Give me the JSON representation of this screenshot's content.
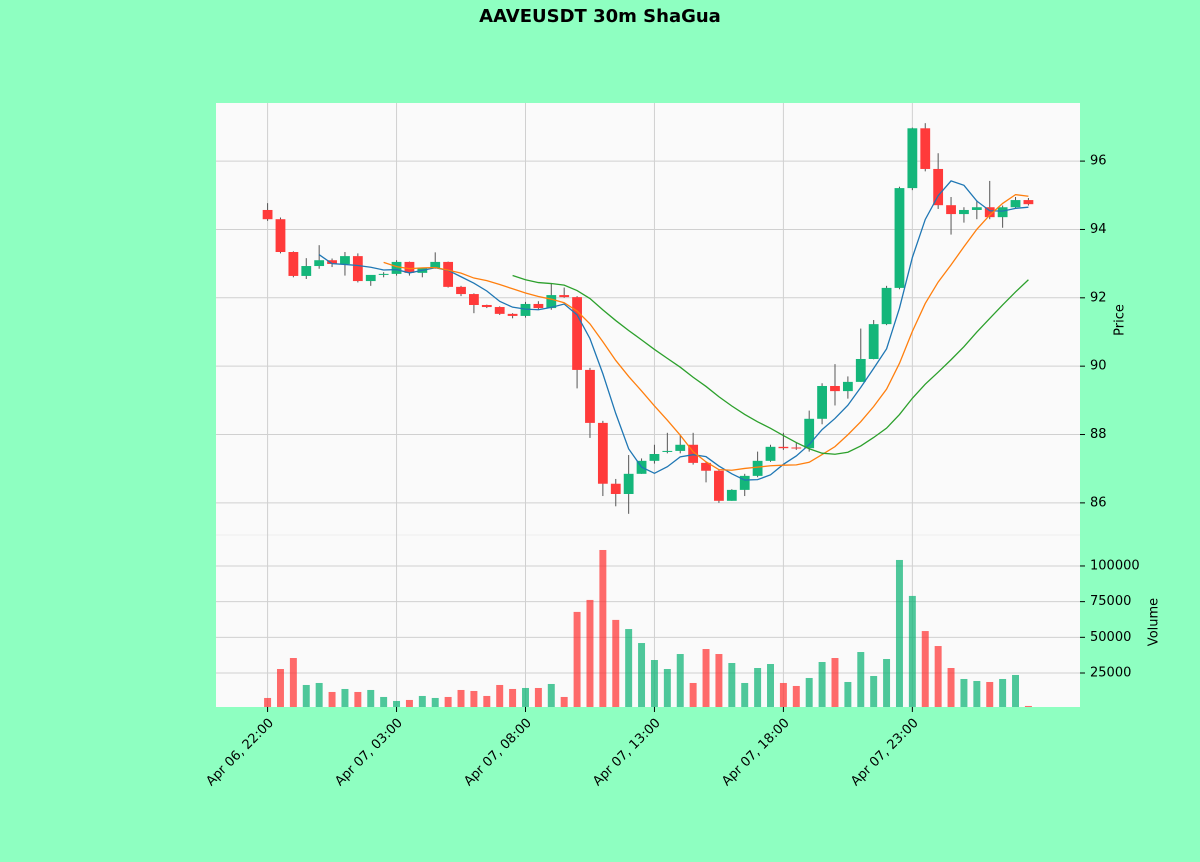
{
  "chart_data": {
    "type": "candlestick",
    "title": "AAVEUSDT 30m ShaGua",
    "ylabel": "Price",
    "y2label": "Volume",
    "up_color": "#14b67a",
    "down_color": "#ff3a3a",
    "grid": true,
    "xlim": [
      -4,
      63
    ],
    "xticks": [
      {
        "value": 0,
        "label": "Apr 06, 22:00"
      },
      {
        "value": 10,
        "label": "Apr 07, 03:00"
      },
      {
        "value": 20,
        "label": "Apr 07, 08:00"
      },
      {
        "value": 30,
        "label": "Apr 07, 13:00"
      },
      {
        "value": 40,
        "label": "Apr 07, 18:00"
      },
      {
        "value": 50,
        "label": "Apr 07, 23:00"
      }
    ],
    "ylim": [
      85.06,
      97.7
    ],
    "yticks": [
      86,
      88,
      90,
      92,
      94,
      96
    ],
    "y2lim": [
      1170,
      121700
    ],
    "y2ticks": [
      25000,
      50000,
      75000,
      100000
    ],
    "mav": [
      {
        "period": 5,
        "color": "#1f77b4"
      },
      {
        "period": 10,
        "color": "#ff7f0e"
      },
      {
        "period": 20,
        "color": "#2ca02c"
      }
    ],
    "open": [
      94.57,
      94.3,
      93.34,
      92.64,
      92.93,
      93.1,
      92.99,
      93.22,
      92.49,
      92.67,
      92.7,
      93.05,
      92.73,
      92.87,
      93.05,
      92.32,
      92.11,
      91.79,
      91.73,
      91.53,
      91.47,
      91.82,
      91.7,
      92.08,
      92.02,
      89.89,
      88.34,
      86.56,
      86.26,
      86.85,
      87.23,
      87.49,
      87.52,
      87.7,
      87.17,
      86.94,
      86.06,
      86.38,
      86.79,
      87.23,
      87.64,
      87.62,
      87.6,
      88.46,
      89.42,
      89.27,
      89.54,
      90.21,
      91.23,
      92.29,
      95.21,
      96.96,
      95.77,
      94.71,
      94.45,
      94.57,
      94.65,
      94.36,
      94.65,
      94.86
    ],
    "high": [
      94.77,
      94.35,
      93.36,
      93.16,
      93.54,
      93.15,
      93.34,
      93.3,
      92.6,
      92.75,
      93.1,
      93.06,
      92.8,
      93.33,
      93.06,
      92.35,
      92.13,
      91.8,
      91.75,
      91.55,
      91.88,
      91.9,
      92.43,
      92.3,
      92.05,
      89.95,
      88.4,
      86.7,
      87.4,
      87.3,
      87.7,
      88.05,
      88.0,
      88.05,
      87.2,
      86.98,
      86.4,
      86.85,
      87.5,
      87.7,
      88.05,
      87.75,
      88.7,
      89.5,
      90.06,
      89.7,
      91.1,
      91.35,
      92.35,
      95.25,
      96.98,
      97.11,
      96.23,
      94.95,
      94.65,
      94.85,
      95.42,
      94.7,
      94.95,
      94.92
    ],
    "low": [
      94.25,
      93.3,
      92.6,
      92.55,
      92.85,
      92.9,
      92.65,
      92.45,
      92.35,
      92.6,
      92.65,
      92.65,
      92.6,
      92.85,
      92.3,
      92.05,
      91.55,
      91.7,
      91.5,
      91.4,
      91.42,
      91.65,
      91.65,
      92.0,
      89.35,
      87.9,
      86.2,
      85.9,
      85.68,
      86.85,
      87.15,
      87.45,
      87.45,
      87.12,
      86.6,
      86.0,
      86.06,
      86.2,
      86.75,
      87.2,
      87.55,
      87.55,
      87.5,
      88.3,
      88.85,
      89.05,
      89.54,
      90.2,
      91.2,
      92.25,
      95.15,
      95.7,
      94.6,
      93.85,
      94.2,
      94.3,
      94.3,
      94.05,
      94.6,
      94.7
    ],
    "close": [
      94.3,
      93.34,
      92.64,
      92.93,
      93.1,
      92.99,
      93.22,
      92.49,
      92.67,
      92.7,
      93.05,
      92.73,
      92.87,
      93.05,
      92.32,
      92.11,
      91.79,
      91.73,
      91.53,
      91.47,
      91.82,
      91.7,
      92.08,
      92.02,
      89.89,
      88.34,
      86.56,
      86.26,
      86.85,
      87.23,
      87.43,
      87.52,
      87.7,
      87.17,
      86.94,
      86.06,
      86.38,
      86.79,
      87.23,
      87.64,
      87.6,
      87.6,
      88.46,
      89.42,
      89.27,
      89.54,
      90.21,
      91.23,
      92.29,
      95.21,
      96.96,
      95.77,
      94.71,
      94.45,
      94.57,
      94.65,
      94.36,
      94.65,
      94.86,
      94.74
    ],
    "volume": [
      7500,
      27800,
      35500,
      16600,
      18000,
      11700,
      13800,
      11700,
      13100,
      8200,
      5400,
      6100,
      8900,
      7500,
      8200,
      13100,
      12400,
      8900,
      16600,
      13800,
      14500,
      14500,
      17300,
      8200,
      67800,
      76200,
      111200,
      62200,
      55800,
      46000,
      34100,
      27800,
      38300,
      18000,
      41800,
      38300,
      32000,
      18000,
      28500,
      31300,
      18000,
      15900,
      21500,
      32700,
      35500,
      18700,
      39700,
      22900,
      34800,
      104200,
      79000,
      54400,
      43900,
      28500,
      20800,
      19400,
      18700,
      20800,
      23600,
      1900
    ]
  }
}
